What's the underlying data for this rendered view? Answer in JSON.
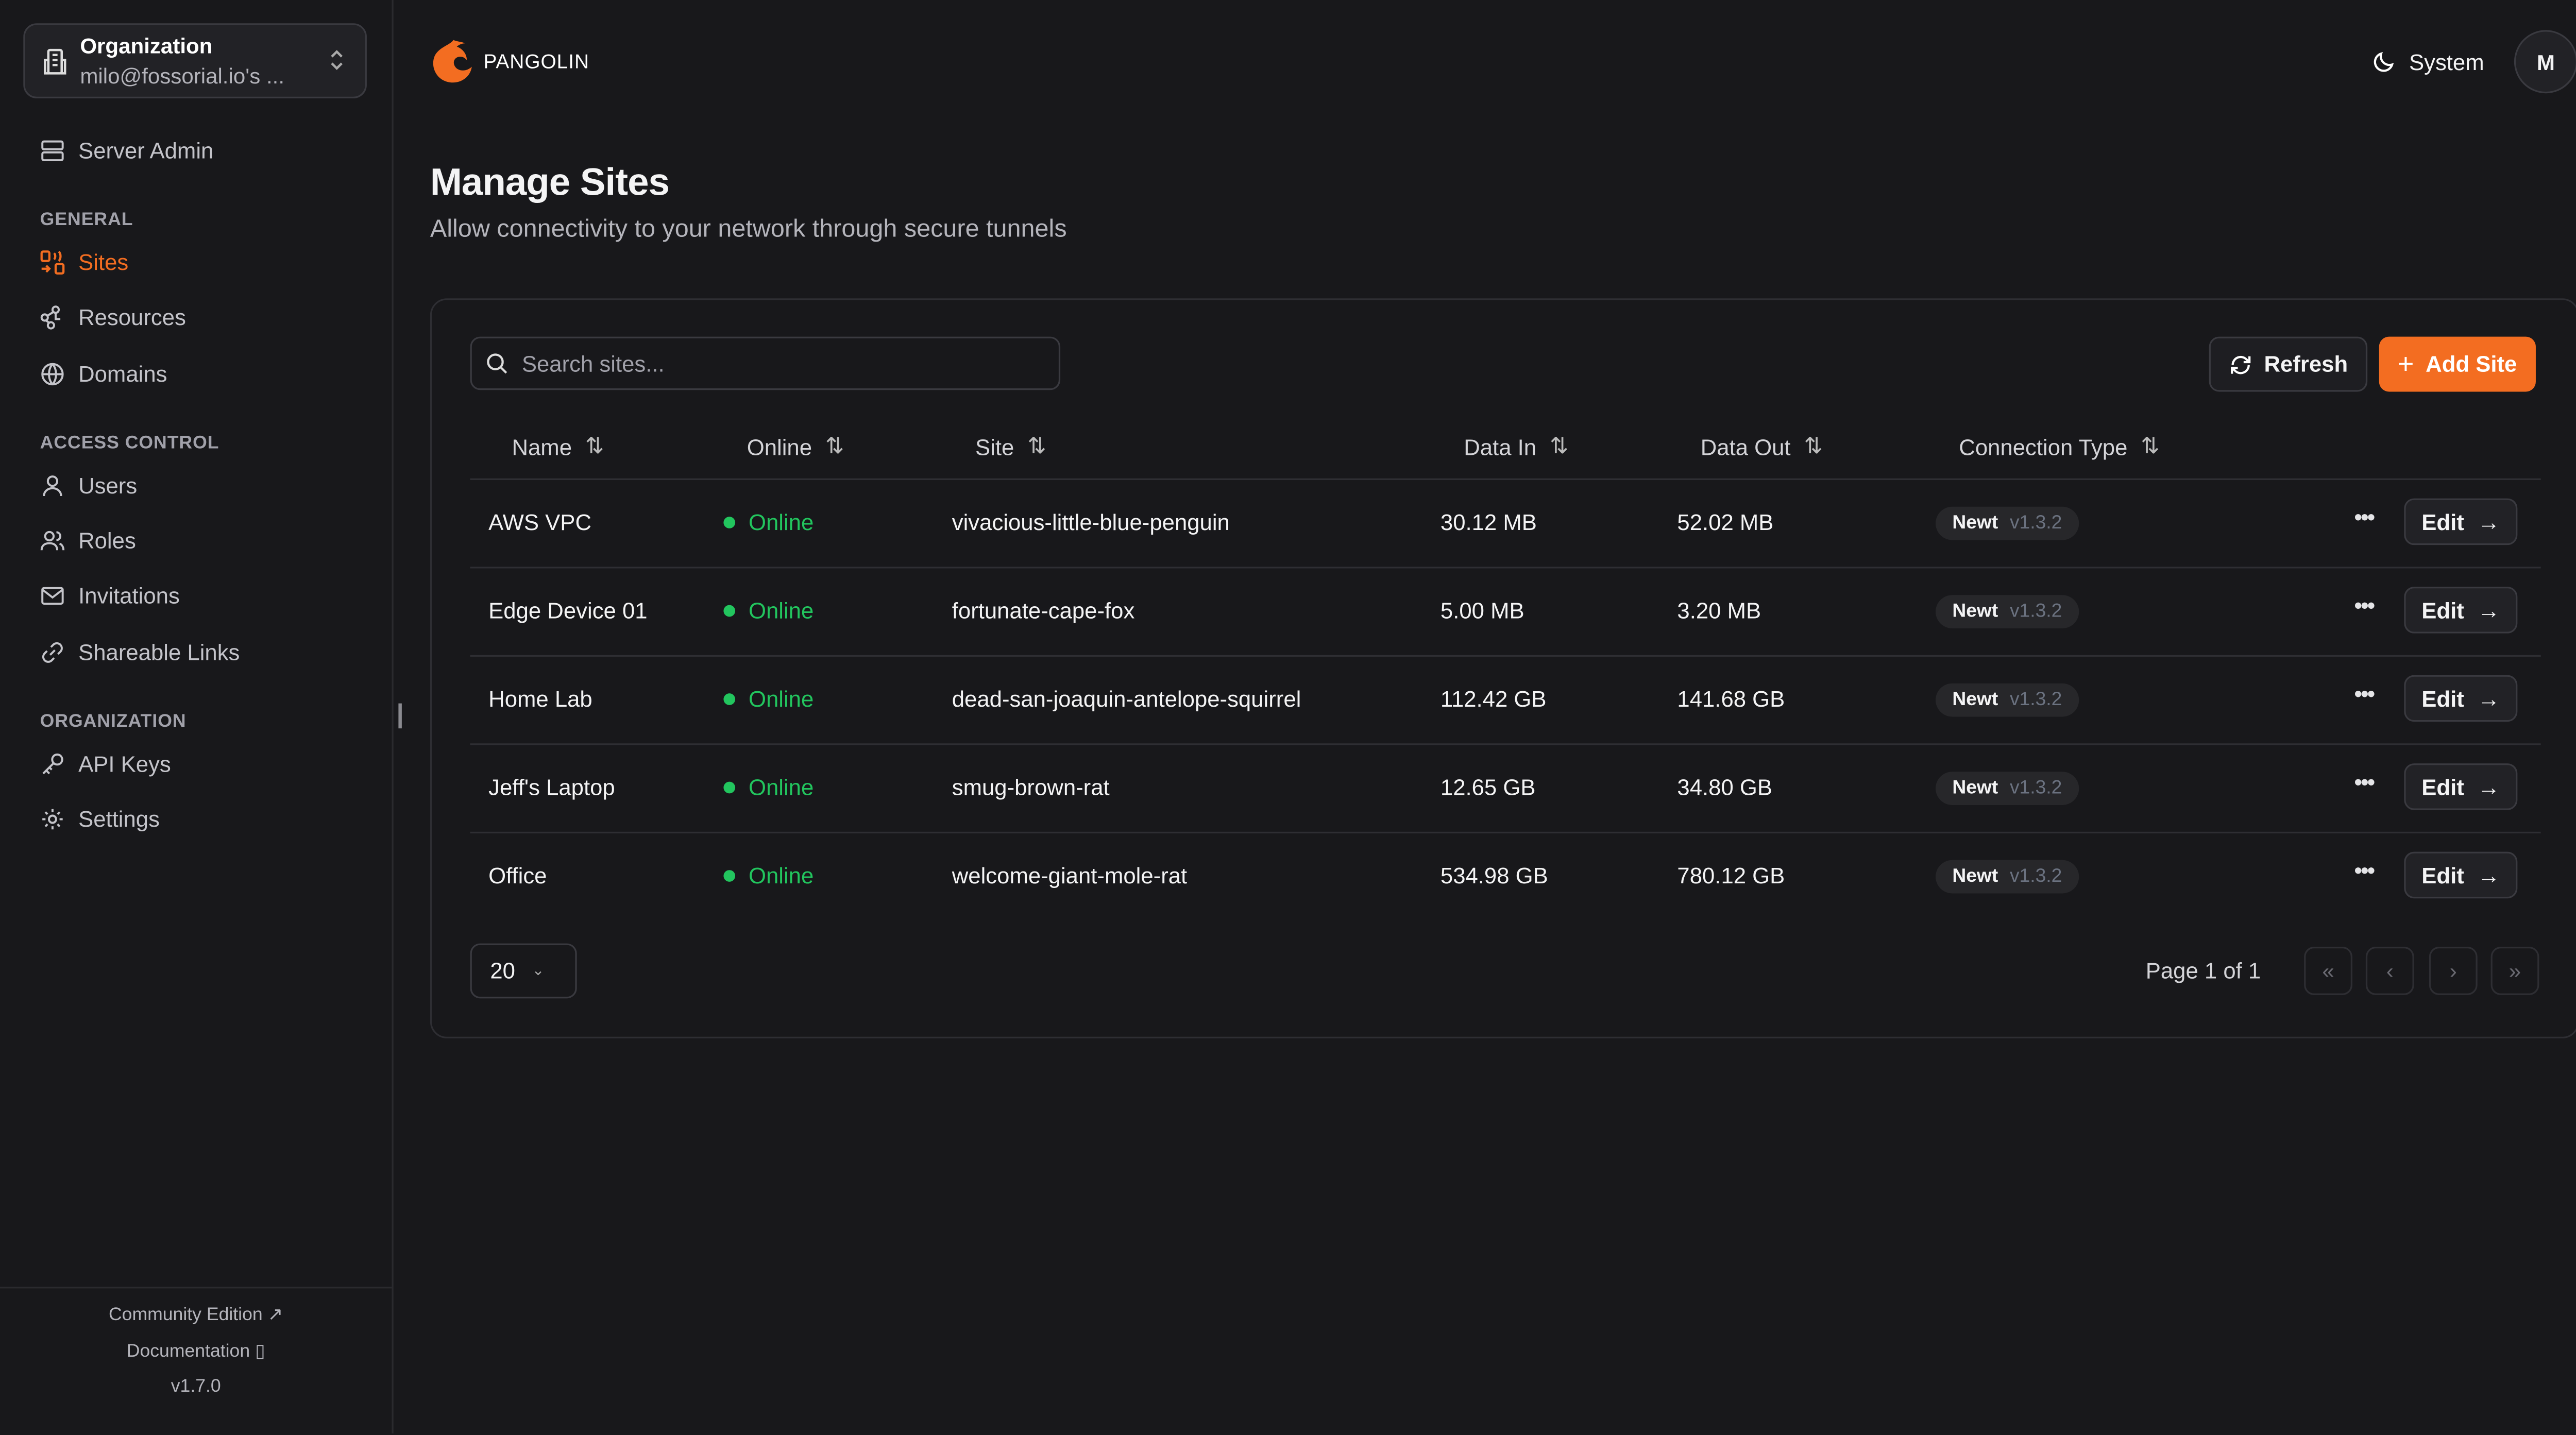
{
  "sidebar": {
    "org": {
      "label": "Organization",
      "value": "milo@fossorial.io's ..."
    },
    "server_admin": "Server Admin",
    "sections": [
      {
        "title": "GENERAL",
        "items": [
          {
            "label": "Sites",
            "icon": "sites-icon",
            "active": true
          },
          {
            "label": "Resources",
            "icon": "resources-icon"
          },
          {
            "label": "Domains",
            "icon": "globe-icon"
          }
        ]
      },
      {
        "title": "ACCESS CONTROL",
        "items": [
          {
            "label": "Users",
            "icon": "user-icon"
          },
          {
            "label": "Roles",
            "icon": "users-icon"
          },
          {
            "label": "Invitations",
            "icon": "mail-icon"
          },
          {
            "label": "Shareable Links",
            "icon": "link-icon"
          }
        ]
      },
      {
        "title": "ORGANIZATION",
        "items": [
          {
            "label": "API Keys",
            "icon": "key-icon"
          },
          {
            "label": "Settings",
            "icon": "gear-icon"
          }
        ]
      }
    ],
    "footer": {
      "community": "Community Edition",
      "docs": "Documentation",
      "version": "v1.7.0"
    }
  },
  "header": {
    "brand": "PANGOLIN",
    "theme": "System",
    "avatar": "M"
  },
  "page": {
    "title": "Manage Sites",
    "subtitle": "Allow connectivity to your network through secure tunnels"
  },
  "toolbar": {
    "search_placeholder": "Search sites...",
    "refresh": "Refresh",
    "add": "Add Site"
  },
  "table": {
    "columns": [
      "Name",
      "Online",
      "Site",
      "Data In",
      "Data Out",
      "Connection Type"
    ],
    "rows": [
      {
        "name": "AWS VPC",
        "online": "Online",
        "site": "vivacious-little-blue-penguin",
        "data_in": "30.12 MB",
        "data_out": "52.02 MB",
        "type": "Newt",
        "version": "v1.3.2",
        "edit": "Edit"
      },
      {
        "name": "Edge Device 01",
        "online": "Online",
        "site": "fortunate-cape-fox",
        "data_in": "5.00 MB",
        "data_out": "3.20 MB",
        "type": "Newt",
        "version": "v1.3.2",
        "edit": "Edit"
      },
      {
        "name": "Home Lab",
        "online": "Online",
        "site": "dead-san-joaquin-antelope-squirrel",
        "data_in": "112.42 GB",
        "data_out": "141.68 GB",
        "type": "Newt",
        "version": "v1.3.2",
        "edit": "Edit"
      },
      {
        "name": "Jeff's Laptop",
        "online": "Online",
        "site": "smug-brown-rat",
        "data_in": "12.65 GB",
        "data_out": "34.80 GB",
        "type": "Newt",
        "version": "v1.3.2",
        "edit": "Edit"
      },
      {
        "name": "Office",
        "online": "Online",
        "site": "welcome-giant-mole-rat",
        "data_in": "534.98 GB",
        "data_out": "780.12 GB",
        "type": "Newt",
        "version": "v1.3.2",
        "edit": "Edit"
      }
    ]
  },
  "pagination": {
    "page_size": "20",
    "page_info": "Page 1 of 1"
  },
  "colors": {
    "accent": "#f36d21",
    "online": "#22c55e",
    "background": "#18181b"
  }
}
